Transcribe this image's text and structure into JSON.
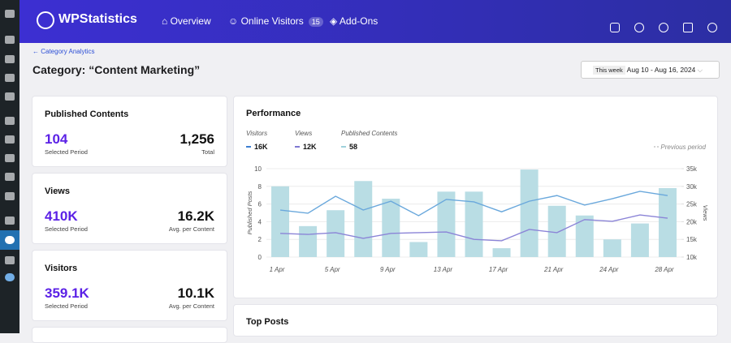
{
  "header": {
    "logo": "WPStatistics",
    "nav": [
      "Overview",
      "Online Visitors",
      "Add-Ons"
    ],
    "online_badge": "15"
  },
  "breadcrumb": "Category Analytics",
  "title": "Category: “Content Marketing”",
  "date_picker": {
    "preset": "This week",
    "range": "Aug 10 - Aug 16, 2024"
  },
  "cards": [
    {
      "title": "Published Contents",
      "left_value": "104",
      "left_label": "Selected Period",
      "right_value": "1,256",
      "right_label": "Total"
    },
    {
      "title": "Views",
      "left_value": "410K",
      "left_label": "Selected Period",
      "right_value": "16.2K",
      "right_label": "Avg. per Content"
    },
    {
      "title": "Visitors",
      "left_value": "359.1K",
      "left_label": "Selected Period",
      "right_value": "10.1K",
      "right_label": "Avg. per Content"
    }
  ],
  "top_posts_title": "Top Posts",
  "chart_data": {
    "type": "bar",
    "title": "Performance",
    "categories": [
      "1 Apr",
      null,
      "5 Apr",
      null,
      "9 Apr",
      null,
      "13 Apr",
      null,
      "17 Apr",
      null,
      "21 Apr",
      null,
      "24 Apr",
      null,
      "28 Apr"
    ],
    "series": [
      {
        "name": "Visitors",
        "type": "line",
        "axis": "y2",
        "color": "#6aa8dc",
        "legend_color": "#3d7fd1",
        "summary": "16K",
        "values": [
          23300,
          22400,
          27200,
          23300,
          25800,
          21700,
          26300,
          25600,
          22800,
          25800,
          27400,
          24700,
          26500,
          28600,
          27400
        ]
      },
      {
        "name": "Views",
        "type": "line",
        "axis": "y2",
        "color": "#8b84d7",
        "legend_color": "#7f78d2",
        "summary": "12K",
        "values": [
          16700,
          16400,
          16900,
          15300,
          16700,
          16900,
          17100,
          15000,
          14600,
          17800,
          16900,
          20600,
          20100,
          21900,
          21000
        ]
      },
      {
        "name": "Published Contents",
        "type": "bar",
        "color": "#b9dde4",
        "legend_color": "#9fd1dc",
        "summary": "58",
        "values": [
          8,
          3.5,
          5.3,
          8.6,
          6.6,
          1.7,
          7.4,
          7.4,
          1,
          9.9,
          5.8,
          4.7,
          2,
          3.8,
          7.8
        ]
      }
    ],
    "ylabel": "Published Posts",
    "y2label": "Views",
    "previous_period": "Previous period",
    "ylim": [
      0,
      10
    ],
    "yticks": [
      0,
      2,
      4,
      6,
      8,
      10
    ],
    "y2lim": [
      10000,
      35000
    ],
    "y2ticks": [
      {
        "value": 10000,
        "label": "10k"
      },
      {
        "value": 15000,
        "label": "15k"
      },
      {
        "value": 20000,
        "label": "20k"
      },
      {
        "value": 25000,
        "label": "25k"
      },
      {
        "value": 30000,
        "label": "30k"
      },
      {
        "value": 35000,
        "label": "35k"
      }
    ],
    "grid": true
  }
}
